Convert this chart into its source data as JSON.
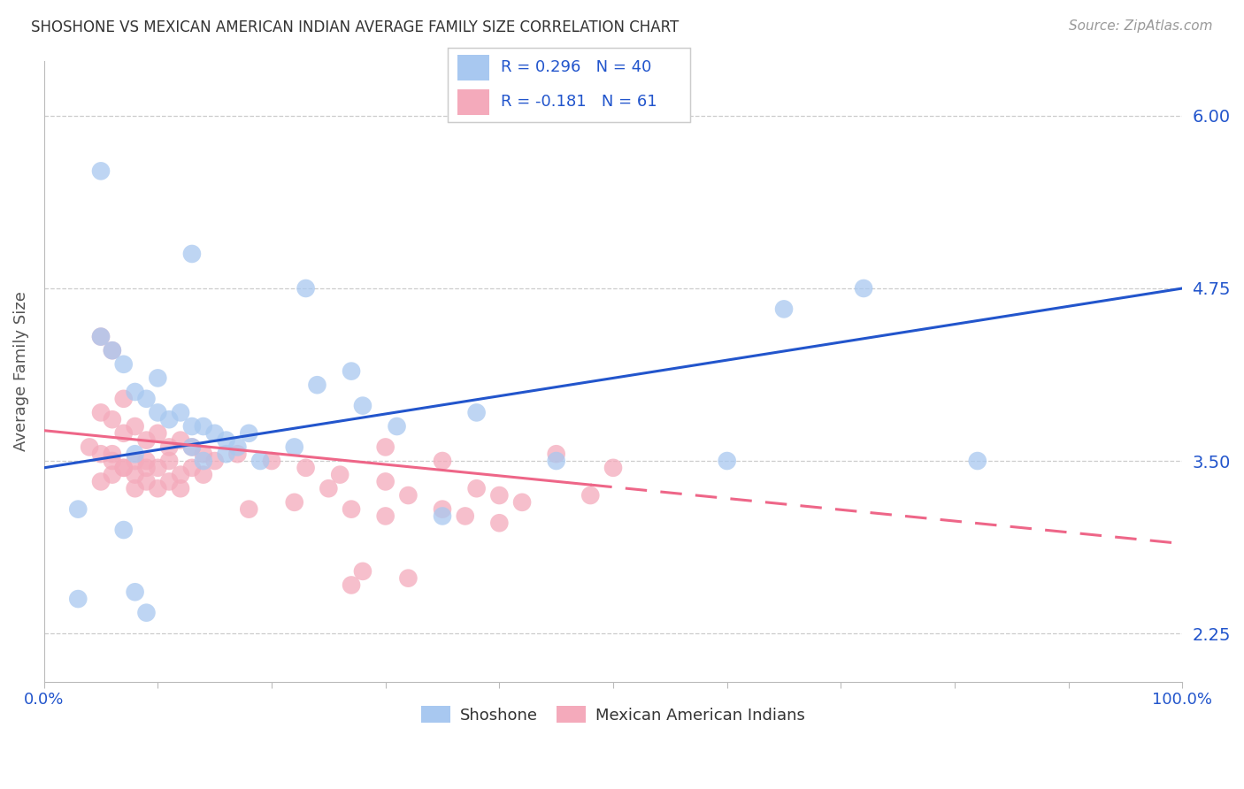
{
  "title": "SHOSHONE VS MEXICAN AMERICAN INDIAN AVERAGE FAMILY SIZE CORRELATION CHART",
  "source": "Source: ZipAtlas.com",
  "ylabel": "Average Family Size",
  "xlim": [
    0,
    100
  ],
  "ylim": [
    1.9,
    6.4
  ],
  "yticks": [
    2.25,
    3.5,
    4.75,
    6.0
  ],
  "xtick_labels_shown": [
    "0.0%",
    "100.0%"
  ],
  "blue_R": 0.296,
  "blue_N": 40,
  "pink_R": -0.181,
  "pink_N": 61,
  "shoshone_color": "#A8C8F0",
  "mexican_color": "#F4AABB",
  "blue_line_color": "#2255CC",
  "pink_line_color": "#EE6688",
  "ytick_color": "#2255CC",
  "xtick_color": "#2255CC",
  "background_color": "#FFFFFF",
  "grid_color": "#CCCCCC",
  "legend_label_blue": "Shoshone",
  "legend_label_pink": "Mexican American Indians",
  "blue_line_start_y": 3.45,
  "blue_line_end_y": 4.75,
  "pink_line_start_y": 3.72,
  "pink_line_end_x_solid": 48,
  "pink_line_end_y": 2.9,
  "shoshone_x": [
    5,
    13,
    23,
    5,
    6,
    7,
    8,
    9,
    10,
    10,
    11,
    12,
    13,
    14,
    15,
    16,
    17,
    18,
    8,
    13,
    14,
    16,
    19,
    22,
    24,
    28,
    31,
    38,
    45,
    60,
    65,
    72,
    82,
    3,
    3,
    7,
    8,
    9,
    35,
    27
  ],
  "shoshone_y": [
    5.6,
    5.0,
    4.75,
    4.4,
    4.3,
    4.2,
    4.0,
    3.95,
    4.1,
    3.85,
    3.8,
    3.85,
    3.75,
    3.75,
    3.7,
    3.65,
    3.6,
    3.7,
    3.55,
    3.6,
    3.5,
    3.55,
    3.5,
    3.6,
    4.05,
    3.9,
    3.75,
    3.85,
    3.5,
    3.5,
    4.6,
    4.75,
    3.5,
    3.15,
    2.5,
    3.0,
    2.55,
    2.4,
    3.1,
    4.15
  ],
  "mexican_x": [
    5,
    6,
    7,
    5,
    6,
    7,
    8,
    9,
    10,
    11,
    12,
    13,
    14,
    15,
    5,
    6,
    7,
    8,
    9,
    10,
    11,
    12,
    13,
    14,
    4,
    6,
    7,
    8,
    9,
    5,
    6,
    8,
    9,
    10,
    11,
    12,
    17,
    20,
    23,
    26,
    30,
    30,
    35,
    38,
    40,
    42,
    45,
    48,
    50,
    18,
    22,
    25,
    27,
    30,
    32,
    35,
    37,
    40,
    28,
    32,
    27
  ],
  "mexican_y": [
    4.4,
    4.3,
    3.95,
    3.85,
    3.8,
    3.7,
    3.75,
    3.65,
    3.7,
    3.6,
    3.65,
    3.6,
    3.55,
    3.5,
    3.55,
    3.5,
    3.45,
    3.4,
    3.5,
    3.45,
    3.5,
    3.4,
    3.45,
    3.4,
    3.6,
    3.55,
    3.45,
    3.5,
    3.45,
    3.35,
    3.4,
    3.3,
    3.35,
    3.3,
    3.35,
    3.3,
    3.55,
    3.5,
    3.45,
    3.4,
    3.35,
    3.6,
    3.5,
    3.3,
    3.25,
    3.2,
    3.55,
    3.25,
    3.45,
    3.15,
    3.2,
    3.3,
    3.15,
    3.1,
    3.25,
    3.15,
    3.1,
    3.05,
    2.7,
    2.65,
    2.6
  ]
}
